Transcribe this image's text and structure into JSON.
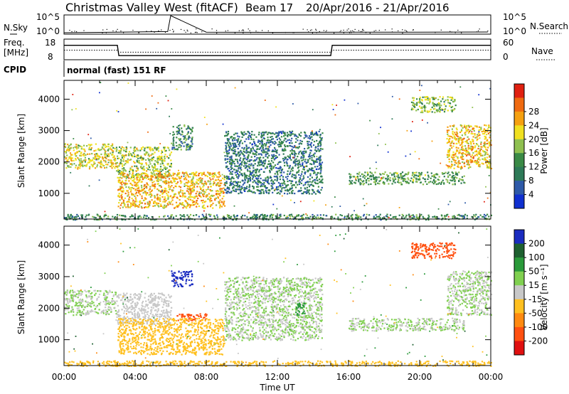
{
  "header": {
    "radar": "Christmas Valley West (fitACF)",
    "beam": "Beam 17",
    "date_range": "20/Apr/2016 - 21/Apr/2016"
  },
  "noise_panel": {
    "left_label": "N.Sky",
    "right_label": "N.Search",
    "left_ticks": [
      "10^5",
      "10^0"
    ],
    "right_ticks": [
      "10^5",
      "10^0"
    ]
  },
  "freq_panel": {
    "left_label_1": "Freq.",
    "left_label_2": "[MHz]",
    "right_label": "Nave",
    "left_ticks": [
      "18",
      "8"
    ],
    "right_ticks": [
      "60",
      "0"
    ]
  },
  "cpid": {
    "label": "CPID",
    "text": "normal (fast) 151 RF"
  },
  "power_panel": {
    "ylabel": "Slant Range [km]",
    "yticks": [
      "1000",
      "2000",
      "3000",
      "4000"
    ],
    "colorbar_label": "Power [dB]",
    "colorbar_ticks": [
      "4",
      "8",
      "12",
      "16",
      "20",
      "24",
      "28"
    ],
    "colors": [
      "#1030d0",
      "#2e5aa8",
      "#2e7a58",
      "#3a8a46",
      "#8fc050",
      "#f0e020",
      "#f5a010",
      "#ef6a10",
      "#e02010"
    ]
  },
  "velocity_panel": {
    "ylabel": "Slant Range [km]",
    "yticks": [
      "1000",
      "2000",
      "3000",
      "4000"
    ],
    "colorbar_label": "Velocity [m s⁻¹]",
    "colorbar_ticks": [
      "200",
      "100",
      "50",
      "15",
      "-15",
      "-50",
      "-100",
      "-200"
    ],
    "colors": [
      "#1a2cc0",
      "#1e6030",
      "#2a9a3a",
      "#80d050",
      "#c8c8c8",
      "#ffc020",
      "#ff8a10",
      "#ff5010",
      "#e01010"
    ]
  },
  "xaxis": {
    "label": "Time UT",
    "ticks": [
      "00:00",
      "04:00",
      "08:00",
      "12:00",
      "16:00",
      "20:00",
      "00:00"
    ]
  },
  "chart_data": [
    {
      "type": "line",
      "title": "N.Sky / N.Search",
      "x": [
        "00:00",
        "03:00",
        "05:00",
        "05:50",
        "06:00",
        "08:00",
        "12:00",
        "16:00",
        "20:00",
        "23:50"
      ],
      "series": [
        {
          "values": [
            1,
            1.5,
            2,
            2.2,
            100000,
            1.5,
            1.3,
            1.4,
            1.5,
            1.6
          ]
        }
      ],
      "ylim": [
        "10^0",
        "10^5"
      ]
    },
    {
      "type": "line",
      "title": "Freq. [MHz] / Nave",
      "x": [
        "00:00",
        "03:00",
        "03:05",
        "15:00",
        "15:05",
        "24:00"
      ],
      "series": [
        {
          "name": "Freq. [MHz]",
          "values": [
            15,
            15,
            10,
            10,
            15,
            15
          ]
        },
        {
          "name": "Nave",
          "values": [
            28,
            28,
            22,
            22,
            28,
            28
          ]
        }
      ],
      "ylim": [
        8,
        18
      ]
    },
    {
      "type": "heatmap",
      "title": "Power [dB]",
      "xlabel": "Time UT",
      "ylabel": "Slant Range [km]",
      "xlim": [
        "00:00",
        "24:00"
      ],
      "ylim": [
        180,
        4600
      ],
      "colorbar": {
        "label": "Power [dB]",
        "range": [
          0,
          30
        ]
      },
      "features": [
        {
          "t_start": 0.0,
          "t_end": 2.9,
          "r_min": 1800,
          "r_max": 2600,
          "power": 18
        },
        {
          "t_start": 2.9,
          "t_end": 6.0,
          "r_min": 1500,
          "r_max": 2500,
          "power": 16
        },
        {
          "t_start": 6.0,
          "t_end": 7.2,
          "r_min": 2400,
          "r_max": 3200,
          "power": 10
        },
        {
          "t_start": 3.0,
          "t_end": 9.0,
          "r_min": 550,
          "r_max": 1700,
          "power": 20
        },
        {
          "t_start": 9.0,
          "t_end": 14.5,
          "r_min": 1000,
          "r_max": 3000,
          "power": 8
        },
        {
          "t_start": 16.0,
          "t_end": 22.5,
          "r_min": 1300,
          "r_max": 1700,
          "power": 12
        },
        {
          "t_start": 19.5,
          "t_end": 22.0,
          "r_min": 3600,
          "r_max": 4100,
          "power": 14
        },
        {
          "t_start": 21.5,
          "t_end": 24.0,
          "r_min": 1800,
          "r_max": 3200,
          "power": 20
        },
        {
          "t_start": 0.0,
          "t_end": 24.0,
          "r_min": 180,
          "r_max": 350,
          "power": 10
        }
      ]
    },
    {
      "type": "heatmap",
      "title": "Velocity [m s⁻¹]",
      "xlabel": "Time UT",
      "ylabel": "Slant Range [km]",
      "xlim": [
        "00:00",
        "24:00"
      ],
      "ylim": [
        180,
        4600
      ],
      "colorbar": {
        "label": "Velocity [m s⁻¹]",
        "range": [
          -250,
          250
        ]
      },
      "features": [
        {
          "t_start": 0.0,
          "t_end": 2.9,
          "r_min": 1800,
          "r_max": 2600,
          "velocity": 0
        },
        {
          "t_start": 2.9,
          "t_end": 6.0,
          "r_min": 1500,
          "r_max": 2500,
          "velocity": -20
        },
        {
          "t_start": 6.0,
          "t_end": 7.2,
          "r_min": 2700,
          "r_max": 3200,
          "velocity": 200
        },
        {
          "t_start": 6.3,
          "t_end": 8.0,
          "r_min": 1600,
          "r_max": 1850,
          "velocity": -200
        },
        {
          "t_start": 3.0,
          "t_end": 9.0,
          "r_min": 550,
          "r_max": 1700,
          "velocity": -40
        },
        {
          "t_start": 9.0,
          "t_end": 14.5,
          "r_min": 1000,
          "r_max": 3000,
          "velocity": 0
        },
        {
          "t_start": 13.0,
          "t_end": 13.5,
          "r_min": 1800,
          "r_max": 2200,
          "velocity": 50
        },
        {
          "t_start": 16.0,
          "t_end": 22.5,
          "r_min": 1300,
          "r_max": 1700,
          "velocity": 0
        },
        {
          "t_start": 19.5,
          "t_end": 22.0,
          "r_min": 3600,
          "r_max": 4100,
          "velocity": -200
        },
        {
          "t_start": 21.5,
          "t_end": 24.0,
          "r_min": 1800,
          "r_max": 3200,
          "velocity": 0
        },
        {
          "t_start": 0.0,
          "t_end": 24.0,
          "r_min": 180,
          "r_max": 350,
          "velocity": -40
        }
      ]
    }
  ]
}
